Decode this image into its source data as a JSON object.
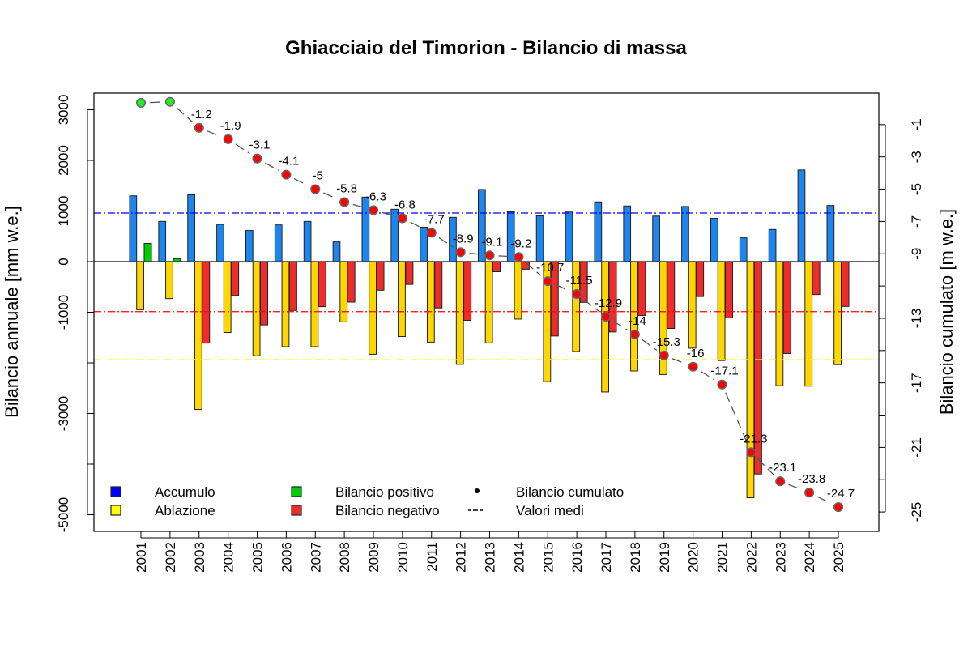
{
  "chart_data": {
    "type": "bar",
    "title": "Ghiacciaio del Timorion - Bilancio di massa",
    "ylabel": "Bilancio annuale [mm w.e.]",
    "y2label": "Bilancio cumulato [m w.e.]",
    "ylim": [
      -5328,
      3328
    ],
    "y2lim": [
      -26.2,
      0.95
    ],
    "yticks": [
      3000,
      2000,
      1000,
      0,
      -1000,
      -2000,
      -3000,
      -4000,
      -5000
    ],
    "ytick_labels": [
      "3000",
      "2000",
      "1000",
      "0",
      "-1000",
      "",
      "-3000",
      "",
      "-5000"
    ],
    "y2ticks": [
      -1,
      -3,
      -5,
      -7,
      -9,
      -11,
      -13,
      -15,
      -17,
      -19,
      -21,
      -23,
      -25
    ],
    "y2tick_labels": [
      "-1",
      "-3",
      "-5",
      "-7",
      "-9",
      "",
      "-13",
      "",
      "-17",
      "",
      "-21",
      "",
      "-25"
    ],
    "grid": false,
    "legend_position": "bottom-left",
    "categories": [
      "2001",
      "2002",
      "2003",
      "2004",
      "2005",
      "2006",
      "2007",
      "2008",
      "2009",
      "2010",
      "2011",
      "2012",
      "2013",
      "2014",
      "2015",
      "2016",
      "2017",
      "2018",
      "2019",
      "2020",
      "2021",
      "2022",
      "2023",
      "2024",
      "2025"
    ],
    "series": [
      {
        "name": "Accumulo",
        "color": "#1C86EE",
        "values": [
          1300,
          795,
          1320,
          735,
          615,
          725,
          795,
          390,
          1275,
          1035,
          680,
          875,
          1425,
          985,
          905,
          980,
          1180,
          1100,
          900,
          1090,
          855,
          470,
          635,
          1810,
          1110
        ]
      },
      {
        "name": "Ablazione",
        "color": "#FFD700",
        "values": [
          -950,
          -730,
          -2920,
          -1400,
          -1860,
          -1680,
          -1680,
          -1190,
          -1830,
          -1480,
          -1590,
          -2030,
          -1605,
          -1135,
          -2370,
          -1775,
          -2575,
          -2160,
          -2230,
          -1710,
          -1955,
          -4665,
          -2450,
          -2460,
          -2035
        ]
      },
      {
        "name": "Bilancio",
        "positive_color": "#00CD00",
        "negative_color": "#EE2C2C",
        "values": [
          360,
          60,
          -1610,
          -670,
          -1250,
          -965,
          -890,
          -800,
          -565,
          -450,
          -915,
          -1160,
          -200,
          -150,
          -1470,
          -805,
          -1390,
          -1065,
          -1320,
          -690,
          -1110,
          -4195,
          -1815,
          -650,
          -885
        ]
      },
      {
        "name": "Bilancio cumulato",
        "axis": "right",
        "values": [
          0.35,
          0.41,
          -1.2,
          -1.9,
          -3.1,
          -4.1,
          -5,
          -5.8,
          -6.3,
          -6.8,
          -7.7,
          -8.9,
          -9.1,
          -9.2,
          -10.7,
          -11.5,
          -12.9,
          -14,
          -15.3,
          -16,
          -17.1,
          -21.3,
          -23.1,
          -23.8,
          -24.7
        ],
        "labels": [
          "",
          "",
          "-1.2",
          "-1.9",
          "-3.1",
          "-4.1",
          "-5",
          "-5.8",
          "-6.3",
          "-6.8",
          "-7.7",
          "-8.9",
          "-9.1",
          "-9.2",
          "-10.7",
          "-11.5",
          "-12.9",
          "-14",
          "-15.3",
          "-16",
          "-17.1",
          "-21.3",
          "-23.1",
          "-23.8",
          "-24.7"
        ]
      }
    ],
    "mean_lines": [
      {
        "of": "Accumulo",
        "value": 960,
        "color": "#0000FF"
      },
      {
        "of": "Bilancio",
        "value": -988,
        "color": "#FF0000"
      },
      {
        "of": "Ablazione",
        "value": -1936,
        "color": "#FFFF00"
      }
    ],
    "legend": [
      {
        "label": "Accumulo",
        "symbol": "square",
        "color": "#0000FF"
      },
      {
        "label": "Ablazione",
        "symbol": "square",
        "color": "#FFFF00"
      },
      {
        "label": "Bilancio positivo",
        "symbol": "square",
        "color": "#00CD00"
      },
      {
        "label": "Bilancio negativo",
        "symbol": "square",
        "color": "#EE2C2C"
      },
      {
        "label": "Bilancio cumulato",
        "symbol": "dot",
        "color": "#000000"
      },
      {
        "label": "Valori medi",
        "symbol": "dashed-line",
        "color": "#000000"
      }
    ]
  }
}
